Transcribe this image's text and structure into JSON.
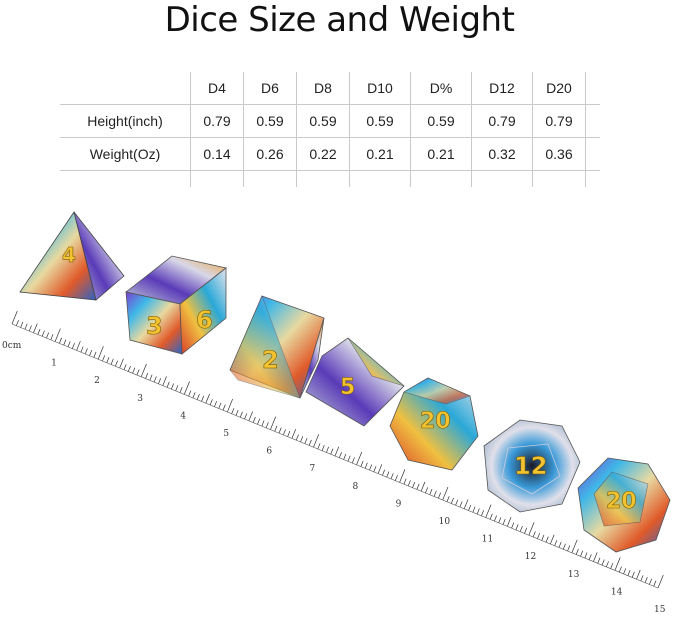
{
  "title": "Dice Size and Weight",
  "table": {
    "columns": [
      "D4",
      "D6",
      "D8",
      "D10",
      "D%",
      "D12",
      "D20"
    ],
    "rows": [
      {
        "label": "Height(inch)",
        "values": [
          "0.79",
          "0.59",
          "0.59",
          "0.59",
          "0.59",
          "0.79",
          "0.79"
        ]
      },
      {
        "label": "Weight(Oz)",
        "values": [
          "0.14",
          "0.26",
          "0.22",
          "0.21",
          "0.21",
          "0.32",
          "0.36"
        ]
      }
    ]
  },
  "ruler": {
    "unit_label": "0cm",
    "numbers": [
      "1",
      "2",
      "3",
      "4",
      "5",
      "6",
      "7",
      "8",
      "9",
      "10",
      "11",
      "12",
      "13",
      "14",
      "15"
    ]
  },
  "dice_faces": {
    "d4": "4",
    "d6": [
      "3",
      "6"
    ],
    "d8": "2",
    "d10": "5",
    "d_percent": "20",
    "d12": "12",
    "d20": "20"
  },
  "colors": {
    "die_number": "#f2c230",
    "gridline": "#c9c9c9"
  }
}
